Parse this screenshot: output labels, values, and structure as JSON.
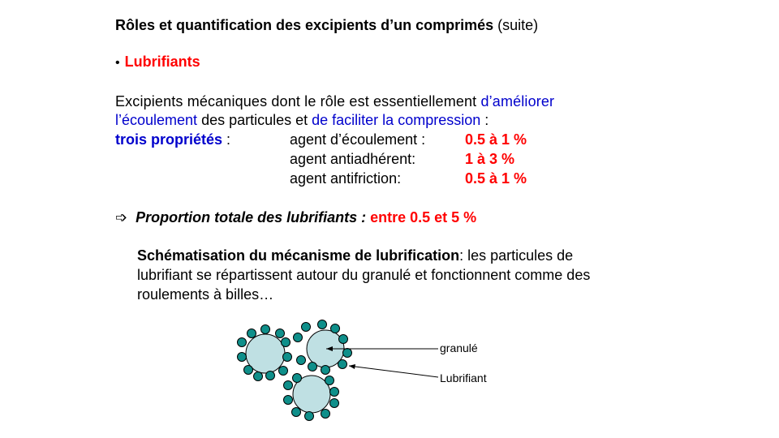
{
  "title": {
    "main": "Rôles et quantification des excipients d’un comprimés",
    "suffix": "(suite)"
  },
  "section": {
    "bullet": "•",
    "label": "Lubrifiants"
  },
  "intro": {
    "part1": "Excipients mécaniques dont le rôle est essentiellement ",
    "part2": "d’améliorer",
    "part3": "l’écoulement",
    "part4": " des particules et ",
    "part5": "de faciliter la compression",
    "part6": " :"
  },
  "properties": {
    "heading": "trois propriétés",
    "colon": " :",
    "items": [
      {
        "name": "agent d’écoulement :",
        "value": "0.5 à 1 %"
      },
      {
        "name": "agent antiadhérent:",
        "value": "1 à 3 %"
      },
      {
        "name": "agent antifriction:",
        "value": "0.5 à 1 %"
      }
    ]
  },
  "total": {
    "arrow": "➩",
    "label": "Proportion totale des lubrifiants : ",
    "value": "entre 0.5 et 5 %"
  },
  "schema_text": {
    "bold": "Schématisation du mécanisme de lubrification",
    "line1_rest": ": les particules de",
    "line2": "lubrifiant se répartissent autour du granulé et fonctionnent comme des",
    "line3": "roulements à billes…"
  },
  "diagram": {
    "label_granule": "granulé",
    "label_lubrifiant": "Lubrifiant",
    "colors": {
      "granule_fill": "#bfe0e3",
      "particle_fill": "#0f8f8a",
      "stroke": "#000000"
    }
  }
}
